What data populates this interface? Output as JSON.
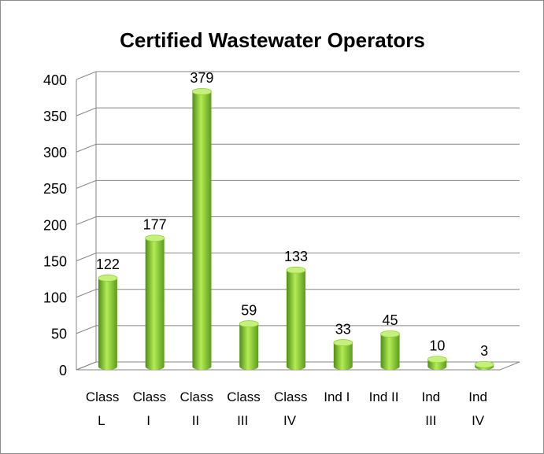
{
  "chart_data": {
    "type": "bar",
    "title": "Certified Wastewater Operators",
    "categories": [
      "Class L",
      "Class I",
      "Class II",
      "Class III",
      "Class IV",
      "Ind I",
      "Ind II",
      "Ind III",
      "Ind IV"
    ],
    "values": [
      122,
      177,
      379,
      59,
      133,
      33,
      45,
      10,
      3
    ],
    "color": "#7cc32a",
    "ylim": [
      0,
      400
    ],
    "yticks": [
      0,
      50,
      100,
      150,
      200,
      250,
      300,
      350,
      400
    ],
    "grid": true
  }
}
